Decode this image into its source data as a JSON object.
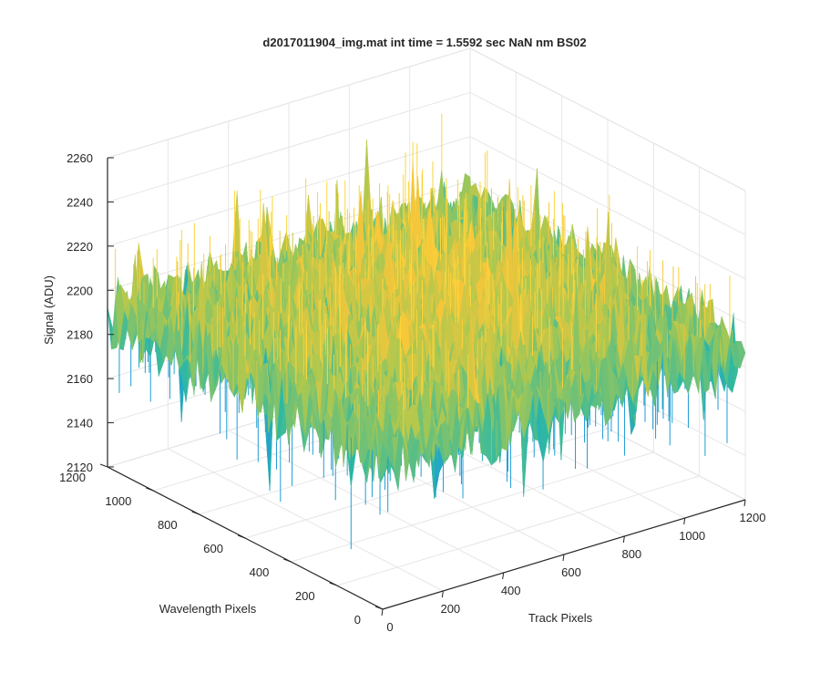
{
  "chart_data": {
    "type": "surface",
    "title": "d2017011904_img.mat int time = 1.5592 sec  NaN nm BS02",
    "xlabel": "Track Pixels",
    "ylabel": "Wavelength Pixels",
    "zlabel": "Signal (ADU)",
    "xlim": [
      0,
      1200
    ],
    "ylim": [
      0,
      1200
    ],
    "zlim": [
      2120,
      2260
    ],
    "x_ticks": [
      "0",
      "200",
      "400",
      "600",
      "800",
      "1000",
      "1200"
    ],
    "y_ticks": [
      "0",
      "200",
      "400",
      "600",
      "800",
      "1000",
      "1200"
    ],
    "z_ticks": [
      "2120",
      "2140",
      "2160",
      "2180",
      "2200",
      "2220",
      "2240",
      "2260"
    ],
    "grid": true,
    "colormap": "parula",
    "colors": {
      "low": "#1f9cd6",
      "mid": "#2fb9a2",
      "high": "#f5c63a",
      "peak": "#fcd63b"
    },
    "surface_summary": {
      "mean": 2195,
      "edge_mean": 2188,
      "center_mean": 2200,
      "max": 2262,
      "min": 2126
    }
  }
}
